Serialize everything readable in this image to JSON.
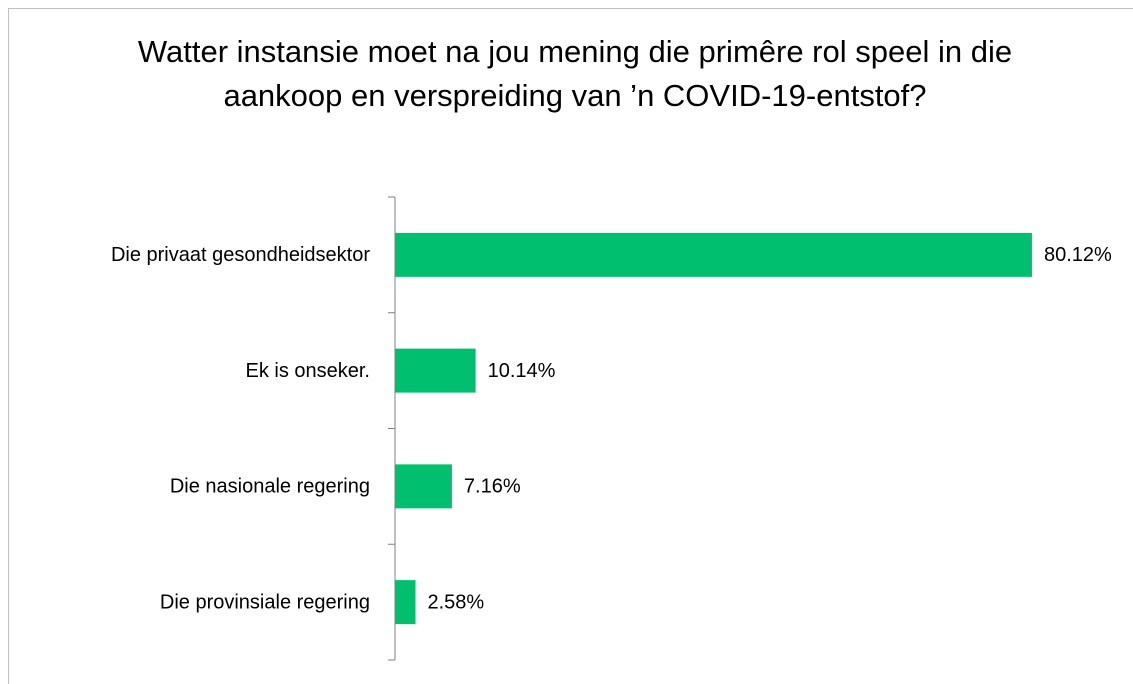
{
  "chart_data": {
    "type": "bar",
    "orientation": "horizontal",
    "title": "Watter instansie moet na jou mening die primêre rol speel in die aankoop en verspreiding van ’n COVID-19-entstof?",
    "categories": [
      "Die privaat gesondheidsektor",
      "Ek is onseker.",
      "Die nasionale regering",
      "Die provinsiale regering"
    ],
    "values": [
      80.12,
      10.14,
      7.16,
      2.58
    ],
    "value_labels": [
      "80.12%",
      "10.14%",
      "7.16%",
      "2.58%"
    ],
    "color": "#00c070"
  }
}
